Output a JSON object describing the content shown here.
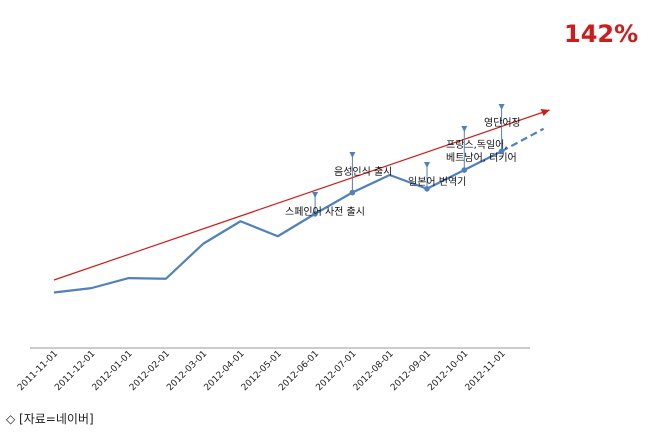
{
  "chart_data": {
    "type": "line",
    "x": [
      "2011-11-01",
      "2011-12-01",
      "2012-01-01",
      "2012-02-01",
      "2012-03-01",
      "2012-04-01",
      "2012-05-01",
      "2012-06-01",
      "2012-07-01",
      "2012-08-01",
      "2012-09-01",
      "2012-10-01",
      "2012-11-01"
    ],
    "series": [
      {
        "values": [
          10,
          13.5,
          21.5,
          21,
          49,
          67,
          55,
          73,
          90,
          104,
          93,
          108,
          123
        ],
        "color": "#4f81bd",
        "dashed_extension": {
          "to_x": "2012-11-01+",
          "value": 141
        }
      }
    ],
    "trendline": {
      "color": "#d11a1a",
      "start_value": 20,
      "end_value": 156
    },
    "annotations": [
      {
        "text_lines": [
          "스페인어 사전 출시"
        ],
        "x": "2012-06-01"
      },
      {
        "text_lines": [
          "음성인식 출시"
        ],
        "x": "2012-07-01"
      },
      {
        "text_lines": [
          "일본어 번역기"
        ],
        "x": "2012-09-01"
      },
      {
        "text_lines": [
          "프랑스,독일어,",
          "베트남어, 터키어"
        ],
        "x": "2012-10-01"
      },
      {
        "text_lines": [
          "영단어장"
        ],
        "x": "2012-11-01"
      }
    ],
    "growth_label": "142%",
    "ylim": [
      0,
      175
    ],
    "grid": false,
    "yaxis_visible": false
  },
  "source_note": "◇ [자료=네이버]"
}
